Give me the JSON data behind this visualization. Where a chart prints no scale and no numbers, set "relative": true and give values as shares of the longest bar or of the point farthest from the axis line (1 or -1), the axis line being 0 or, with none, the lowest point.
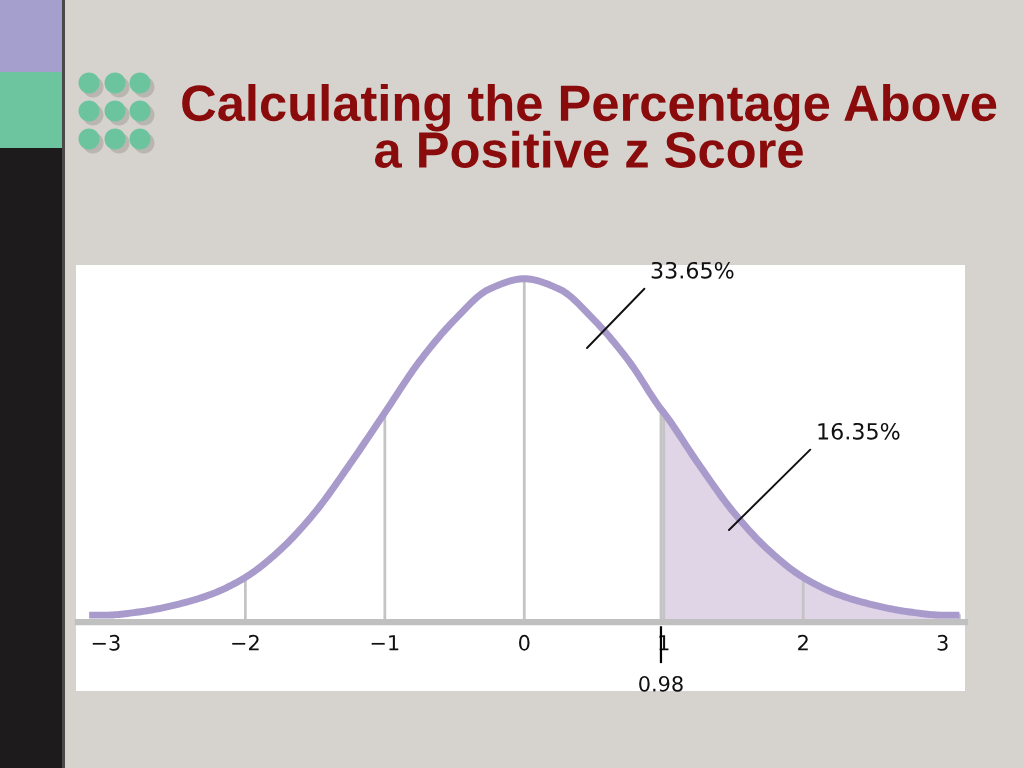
{
  "chart_data": {
    "type": "line",
    "title": "Calculating the Percentage Above\na Positive z Score",
    "relative": true,
    "xlim": [
      -3.2,
      3.16
    ],
    "xticks": [
      {
        "value": -3,
        "label": "−3"
      },
      {
        "value": -2,
        "label": "−2"
      },
      {
        "value": -1,
        "label": "−1"
      },
      0,
      1,
      2,
      3
    ],
    "series": [
      {
        "type": "area",
        "color": "#e0d4e7",
        "x": [
          0.98,
          1,
          1.25,
          1.5,
          1.75,
          2,
          2.25,
          2.5,
          2.75,
          3,
          3.12
        ],
        "values": [
          0.62,
          0.61,
          0.46,
          0.32,
          0.21,
          0.13,
          0.08,
          0.05,
          0.03,
          0.02,
          0.02
        ]
      },
      {
        "color": "#a89bcc",
        "x": [
          -3.12,
          -3,
          -2.75,
          -2.5,
          -2.25,
          -2,
          -1.75,
          -1.5,
          -1.25,
          -1,
          -0.75,
          -0.5,
          -0.25,
          0,
          0.25,
          0.5,
          0.75,
          0.98,
          1,
          1.25,
          1.5,
          1.75,
          2,
          2.25,
          2.5,
          2.75,
          3,
          3.12
        ],
        "values": [
          0.02,
          0.02,
          0.03,
          0.05,
          0.08,
          0.13,
          0.21,
          0.32,
          0.46,
          0.61,
          0.76,
          0.88,
          0.97,
          1,
          0.97,
          0.88,
          0.76,
          0.62,
          0.61,
          0.46,
          0.32,
          0.21,
          0.13,
          0.08,
          0.05,
          0.03,
          0.02,
          0.02
        ]
      }
    ],
    "ref_lines": [
      {
        "axis": "x",
        "value": -2,
        "color": "#c4c4c4"
      },
      {
        "axis": "x",
        "value": -1,
        "color": "#c4c4c4"
      },
      {
        "axis": "x",
        "value": 0,
        "color": "#c4c4c4"
      },
      {
        "axis": "x",
        "value": 1,
        "color": "#c4c4c4"
      },
      {
        "axis": "x",
        "value": 2,
        "color": "#c4c4c4"
      },
      {
        "axis": "x",
        "value": 0.98,
        "label": "0.98",
        "color": "#000000"
      }
    ],
    "annotations": [
      "33.65%",
      "16.35%"
    ]
  }
}
